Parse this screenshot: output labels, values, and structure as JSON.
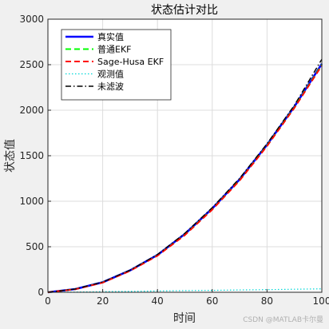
{
  "chart_data": {
    "type": "line",
    "title": "状态估计对比",
    "xlabel": "时间",
    "ylabel": "状态值",
    "xlim": [
      0,
      100
    ],
    "ylim": [
      0,
      3000
    ],
    "xticks": [
      0,
      20,
      40,
      60,
      80,
      100
    ],
    "yticks": [
      0,
      500,
      1000,
      1500,
      2000,
      2500,
      3000
    ],
    "grid": true,
    "legend_position": "top-left",
    "x": [
      0,
      10,
      20,
      30,
      40,
      50,
      60,
      70,
      80,
      90,
      100
    ],
    "series": [
      {
        "name": "真实值",
        "color": "#0000ff",
        "style": "solid",
        "values": [
          0,
          35,
          110,
          240,
          410,
          640,
          920,
          1240,
          1620,
          2040,
          2510
        ]
      },
      {
        "name": "普通EKF",
        "color": "#00ff00",
        "style": "dashed",
        "values": [
          0,
          34,
          108,
          238,
          405,
          632,
          912,
          1232,
          1612,
          2032,
          2500
        ]
      },
      {
        "name": "Sage-Husa EKF",
        "color": "#ff0000",
        "style": "dashed",
        "values": [
          0,
          33,
          106,
          235,
          402,
          628,
          908,
          1228,
          1606,
          2026,
          2490
        ]
      },
      {
        "name": "观测值",
        "color": "#00d8d8",
        "style": "dotted",
        "values": [
          0,
          3,
          7,
          10,
          14,
          18,
          21,
          25,
          29,
          33,
          38
        ]
      },
      {
        "name": "未滤波",
        "color": "#000000",
        "style": "dashdot",
        "values": [
          0,
          36,
          112,
          243,
          415,
          648,
          930,
          1252,
          1632,
          2055,
          2560
        ]
      }
    ]
  },
  "watermark": "CSDN @MATLAB卡尔曼"
}
